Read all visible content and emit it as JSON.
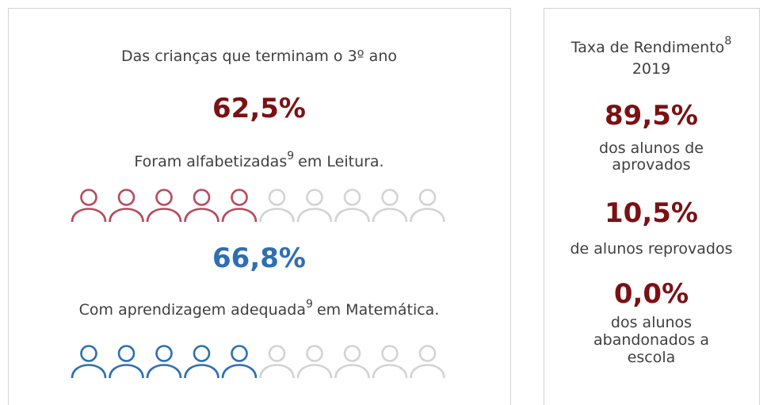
{
  "left": {
    "heading": "Das crianças que terminam o 3º ano",
    "reading": {
      "percent": "62,5%",
      "text": "Foram alfabetizadas",
      "note": "9",
      "text_end": "em Leitura."
    },
    "math": {
      "percent": "66,8%",
      "text": "Com aprendizagem adequada",
      "note": "9",
      "text_end": "em Matemática."
    }
  },
  "right": {
    "title": "Taxa de Rendimento",
    "note": "8",
    "year": "2019",
    "approved": {
      "percent": "89,5%",
      "lines": [
        "dos alunos de",
        "aprovados"
      ]
    },
    "failed": {
      "percent": "10,5%",
      "lines": [
        "de alunos reprovados"
      ]
    },
    "dropout": {
      "percent": "0,0%",
      "lines": [
        "dos alunos",
        "abandonados a",
        "escola"
      ]
    }
  }
}
